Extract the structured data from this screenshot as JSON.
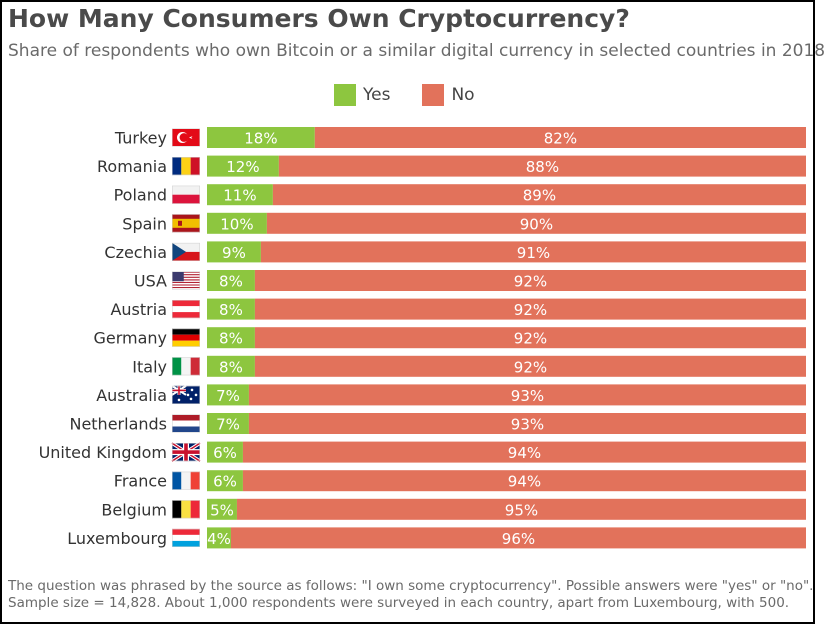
{
  "chart_data": {
    "type": "bar",
    "stacked": true,
    "orientation": "horizontal",
    "title": "How Many Consumers Own Cryptocurrency?",
    "subtitle": "Share of respondents who own Bitcoin or a similar digital currency in selected countries in 2018",
    "legend": {
      "position": "top-center",
      "entries": [
        "Yes",
        "No"
      ]
    },
    "colors": {
      "yes": "#8dc63f",
      "no": "#e2725b",
      "text": "#ffffff"
    },
    "categories": [
      "Turkey",
      "Romania",
      "Poland",
      "Spain",
      "Czechia",
      "USA",
      "Austria",
      "Germany",
      "Italy",
      "Australia",
      "Netherlands",
      "United Kingdom",
      "France",
      "Belgium",
      "Luxembourg"
    ],
    "series": [
      {
        "name": "Yes",
        "values": [
          18,
          12,
          11,
          10,
          9,
          8,
          8,
          8,
          8,
          7,
          7,
          6,
          6,
          5,
          4
        ]
      },
      {
        "name": "No",
        "values": [
          82,
          88,
          89,
          90,
          91,
          92,
          92,
          92,
          92,
          93,
          93,
          94,
          94,
          95,
          96
        ]
      }
    ],
    "value_suffix": "%",
    "xlim": [
      0,
      100
    ],
    "flags": [
      "turkey-flag",
      "romania-flag",
      "poland-flag",
      "spain-flag",
      "czechia-flag",
      "usa-flag",
      "austria-flag",
      "germany-flag",
      "italy-flag",
      "australia-flag",
      "netherlands-flag",
      "united-kingdom-flag",
      "france-flag",
      "belgium-flag",
      "luxembourg-flag"
    ]
  },
  "footnote": {
    "line1": "The question was phrased by the source as follows: \"I own some cryptocurrency\". Possible answers were \"yes\" or \"no\".",
    "line2": "Sample size = 14,828. About 1,000 respondents were surveyed in each country, apart from Luxembourg, with 500."
  }
}
